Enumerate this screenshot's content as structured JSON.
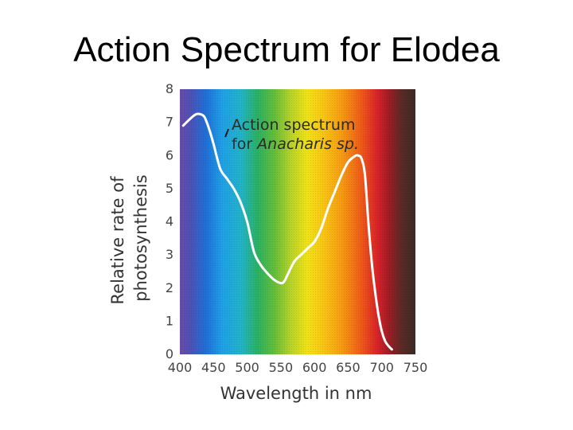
{
  "slide": {
    "title": "Action Spectrum for Elodea"
  },
  "chart_data": {
    "type": "line",
    "title": "",
    "xlabel": "Wavelength in nm",
    "ylabel_line1": "Relative rate of",
    "ylabel_line2": "photosynthesis",
    "xlim": [
      400,
      750
    ],
    "ylim": [
      0,
      8
    ],
    "x_ticks": [
      400,
      450,
      500,
      550,
      600,
      650,
      700,
      750
    ],
    "y_ticks": [
      0,
      1,
      2,
      3,
      4,
      5,
      6,
      7,
      8
    ],
    "background": "visible light spectrum (violet to red, dark beyond 700 nm)",
    "series": [
      {
        "color": "#ffffff",
        "x": [
          405,
          415,
          425,
          435,
          440,
          445,
          450,
          460,
          470,
          480,
          490,
          500,
          510,
          520,
          530,
          540,
          550,
          555,
          560,
          570,
          580,
          590,
          600,
          610,
          620,
          630,
          640,
          650,
          660,
          665,
          670,
          675,
          680,
          685,
          690,
          695,
          700,
          705,
          710,
          715
        ],
        "y": [
          6.9,
          7.1,
          7.25,
          7.2,
          7.0,
          6.7,
          6.35,
          5.6,
          5.3,
          5.0,
          4.6,
          4.0,
          3.1,
          2.7,
          2.45,
          2.25,
          2.15,
          2.2,
          2.4,
          2.8,
          3.0,
          3.2,
          3.4,
          3.8,
          4.4,
          4.9,
          5.4,
          5.8,
          5.98,
          6.0,
          5.9,
          5.4,
          4.0,
          2.8,
          1.9,
          1.2,
          0.7,
          0.4,
          0.25,
          0.15
        ]
      }
    ],
    "annotation": {
      "line1": "Action spectrum",
      "line2_prefix": "for ",
      "line2_italic": "Anacharis sp.",
      "points_to": {
        "x": 445,
        "y": 6.7
      }
    }
  }
}
